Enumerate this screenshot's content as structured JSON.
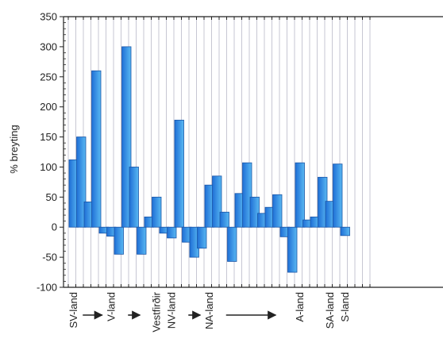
{
  "chart_data": {
    "type": "bar",
    "ylabel": "% breyting",
    "ylim": [
      -100,
      350
    ],
    "yticks": [
      350,
      300,
      250,
      200,
      150,
      100,
      50,
      0,
      -50,
      -100
    ],
    "grid": "vertical",
    "colors": {
      "bar_top": "#1f6fd6",
      "bar_bottom": "#59b8f2",
      "bar_stroke": "#1a56a8",
      "grid": "#b9b9c8",
      "axis": "#222222"
    },
    "values": [
      112,
      150,
      42,
      260,
      -10,
      -15,
      -45,
      300,
      100,
      -45,
      17,
      50,
      -10,
      -18,
      178,
      -25,
      -50,
      -35,
      70,
      85,
      25,
      -57,
      56,
      107,
      50,
      23,
      33,
      54,
      -16,
      -75,
      107,
      12,
      17,
      83,
      43,
      105,
      -14
    ],
    "region_labels": [
      {
        "text": "SV-land",
        "index": 0
      },
      {
        "text": "V-land",
        "index": 5
      },
      {
        "text": "Vestfirðir",
        "index": 11
      },
      {
        "text": "NV-land",
        "index": 13
      },
      {
        "text": "NA-land",
        "index": 18
      },
      {
        "text": "A-land",
        "index": 30
      },
      {
        "text": "SA-land",
        "index": 34
      },
      {
        "text": "S-land",
        "index": 36
      }
    ],
    "arrows": [
      {
        "from_index": 1,
        "to_index": 4
      },
      {
        "from_index": 7,
        "to_index": 9
      },
      {
        "from_index": 15,
        "to_index": 17
      },
      {
        "from_index": 20,
        "to_index": 27
      }
    ]
  }
}
